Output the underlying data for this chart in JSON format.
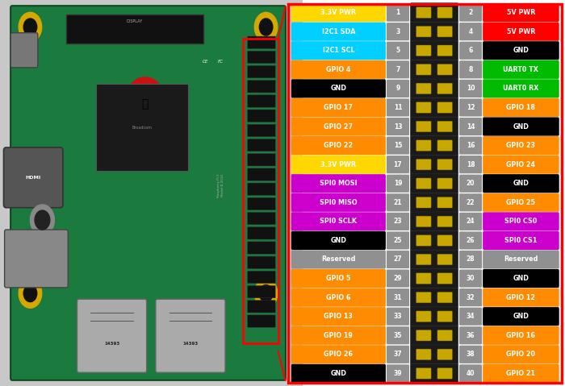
{
  "left_pins": [
    {
      "pin": 1,
      "label": "3.3V PWR",
      "color": "#FFD700",
      "text_color": "#FFFFFF"
    },
    {
      "pin": 3,
      "label": "I2C1 SDA",
      "color": "#00CFFF",
      "text_color": "#FFFFFF"
    },
    {
      "pin": 5,
      "label": "I2C1 SCL",
      "color": "#00CFFF",
      "text_color": "#FFFFFF"
    },
    {
      "pin": 7,
      "label": "GPIO 4",
      "color": "#FF8C00",
      "text_color": "#FFFFFF"
    },
    {
      "pin": 9,
      "label": "GND",
      "color": "#000000",
      "text_color": "#FFFFFF"
    },
    {
      "pin": 11,
      "label": "GPIO 17",
      "color": "#FF8C00",
      "text_color": "#FFFFFF"
    },
    {
      "pin": 13,
      "label": "GPIO 27",
      "color": "#FF8C00",
      "text_color": "#FFFFFF"
    },
    {
      "pin": 15,
      "label": "GPIO 22",
      "color": "#FF8C00",
      "text_color": "#FFFFFF"
    },
    {
      "pin": 17,
      "label": "3.3V PWR",
      "color": "#FFD700",
      "text_color": "#FFFFFF"
    },
    {
      "pin": 19,
      "label": "SPI0 MOSI",
      "color": "#CC00CC",
      "text_color": "#FFFFFF"
    },
    {
      "pin": 21,
      "label": "SPI0 MISO",
      "color": "#CC00CC",
      "text_color": "#FFFFFF"
    },
    {
      "pin": 23,
      "label": "SPI0 SCLK",
      "color": "#CC00CC",
      "text_color": "#FFFFFF"
    },
    {
      "pin": 25,
      "label": "GND",
      "color": "#000000",
      "text_color": "#FFFFFF"
    },
    {
      "pin": 27,
      "label": "Reserved",
      "color": "#909090",
      "text_color": "#FFFFFF"
    },
    {
      "pin": 29,
      "label": "GPIO 5",
      "color": "#FF8C00",
      "text_color": "#FFFFFF"
    },
    {
      "pin": 31,
      "label": "GPIO 6",
      "color": "#FF8C00",
      "text_color": "#FFFFFF"
    },
    {
      "pin": 33,
      "label": "GPIO 13",
      "color": "#FF8C00",
      "text_color": "#FFFFFF"
    },
    {
      "pin": 35,
      "label": "GPIO 19",
      "color": "#FF8C00",
      "text_color": "#FFFFFF"
    },
    {
      "pin": 37,
      "label": "GPIO 26",
      "color": "#FF8C00",
      "text_color": "#FFFFFF"
    },
    {
      "pin": 39,
      "label": "GND",
      "color": "#000000",
      "text_color": "#FFFFFF"
    }
  ],
  "right_pins": [
    {
      "pin": 2,
      "label": "5V PWR",
      "color": "#FF0000",
      "text_color": "#FFFFFF"
    },
    {
      "pin": 4,
      "label": "5V PWR",
      "color": "#FF0000",
      "text_color": "#FFFFFF"
    },
    {
      "pin": 6,
      "label": "GND",
      "color": "#000000",
      "text_color": "#FFFFFF"
    },
    {
      "pin": 8,
      "label": "UART0 TX",
      "color": "#00BB00",
      "text_color": "#FFFFFF"
    },
    {
      "pin": 10,
      "label": "UART0 RX",
      "color": "#00BB00",
      "text_color": "#FFFFFF"
    },
    {
      "pin": 12,
      "label": "GPIO 18",
      "color": "#FF8C00",
      "text_color": "#FFFFFF"
    },
    {
      "pin": 14,
      "label": "GND",
      "color": "#000000",
      "text_color": "#FFFFFF"
    },
    {
      "pin": 16,
      "label": "GPIO 23",
      "color": "#FF8C00",
      "text_color": "#FFFFFF"
    },
    {
      "pin": 18,
      "label": "GPIO 24",
      "color": "#FF8C00",
      "text_color": "#FFFFFF"
    },
    {
      "pin": 20,
      "label": "GND",
      "color": "#000000",
      "text_color": "#FFFFFF"
    },
    {
      "pin": 22,
      "label": "GPIO 25",
      "color": "#FF8C00",
      "text_color": "#FFFFFF"
    },
    {
      "pin": 24,
      "label": "SPI0 CS0",
      "color": "#CC00CC",
      "text_color": "#FFFFFF"
    },
    {
      "pin": 26,
      "label": "SPI0 CS1",
      "color": "#CC00CC",
      "text_color": "#FFFFFF"
    },
    {
      "pin": 28,
      "label": "Reserved",
      "color": "#909090",
      "text_color": "#FFFFFF"
    },
    {
      "pin": 30,
      "label": "GND",
      "color": "#000000",
      "text_color": "#FFFFFF"
    },
    {
      "pin": 32,
      "label": "GPIO 12",
      "color": "#FF8C00",
      "text_color": "#FFFFFF"
    },
    {
      "pin": 34,
      "label": "GND",
      "color": "#000000",
      "text_color": "#FFFFFF"
    },
    {
      "pin": 36,
      "label": "GPIO 16",
      "color": "#FF8C00",
      "text_color": "#FFFFFF"
    },
    {
      "pin": 38,
      "label": "GPIO 20",
      "color": "#FF8C00",
      "text_color": "#FFFFFF"
    },
    {
      "pin": 40,
      "label": "GPIO 21",
      "color": "#FF8C00",
      "text_color": "#FFFFFF"
    }
  ],
  "fig_width": 7.0,
  "fig_height": 4.79,
  "bg_color": "#FFFFFF",
  "photo_bg": "#C8C8C8",
  "board_green": "#1B7A3E",
  "border_red": "#FF0000",
  "connector_dark": "#1A1A1A",
  "pin_num_bg": "#909090",
  "pin_num_text": "#FFFFFF",
  "hole_color": "#C8A800",
  "hole_border": "#7A6600"
}
